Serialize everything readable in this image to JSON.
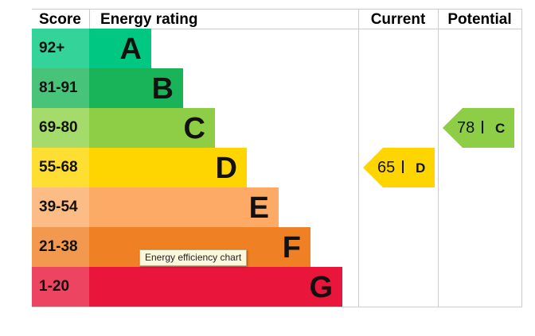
{
  "chart_data": {
    "type": "bar",
    "title": "",
    "headers": {
      "score": "Score",
      "rating": "Energy rating",
      "current": "Current",
      "potential": "Potential"
    },
    "bands": [
      {
        "score": "92+",
        "letter": "A",
        "color": "#00c781",
        "score_color": "#33d39a"
      },
      {
        "score": "81-91",
        "letter": "B",
        "color": "#19b459",
        "score_color": "#47c47a"
      },
      {
        "score": "69-80",
        "letter": "C",
        "color": "#8dce46",
        "score_color": "#a5db6b"
      },
      {
        "score": "55-68",
        "letter": "D",
        "color": "#ffd500",
        "score_color": "#ffde33"
      },
      {
        "score": "39-54",
        "letter": "E",
        "color": "#fcaa65",
        "score_color": "#fcbc86"
      },
      {
        "score": "21-38",
        "letter": "F",
        "color": "#ef8023",
        "score_color": "#f2994f"
      },
      {
        "score": "1-20",
        "letter": "G",
        "color": "#e9153b",
        "score_color": "#ed4462"
      }
    ],
    "current": {
      "value": 65,
      "band": "D",
      "color": "#ffd500"
    },
    "potential": {
      "value": 78,
      "band": "C",
      "color": "#8dce46"
    }
  },
  "tooltip": "Energy efficiency chart"
}
